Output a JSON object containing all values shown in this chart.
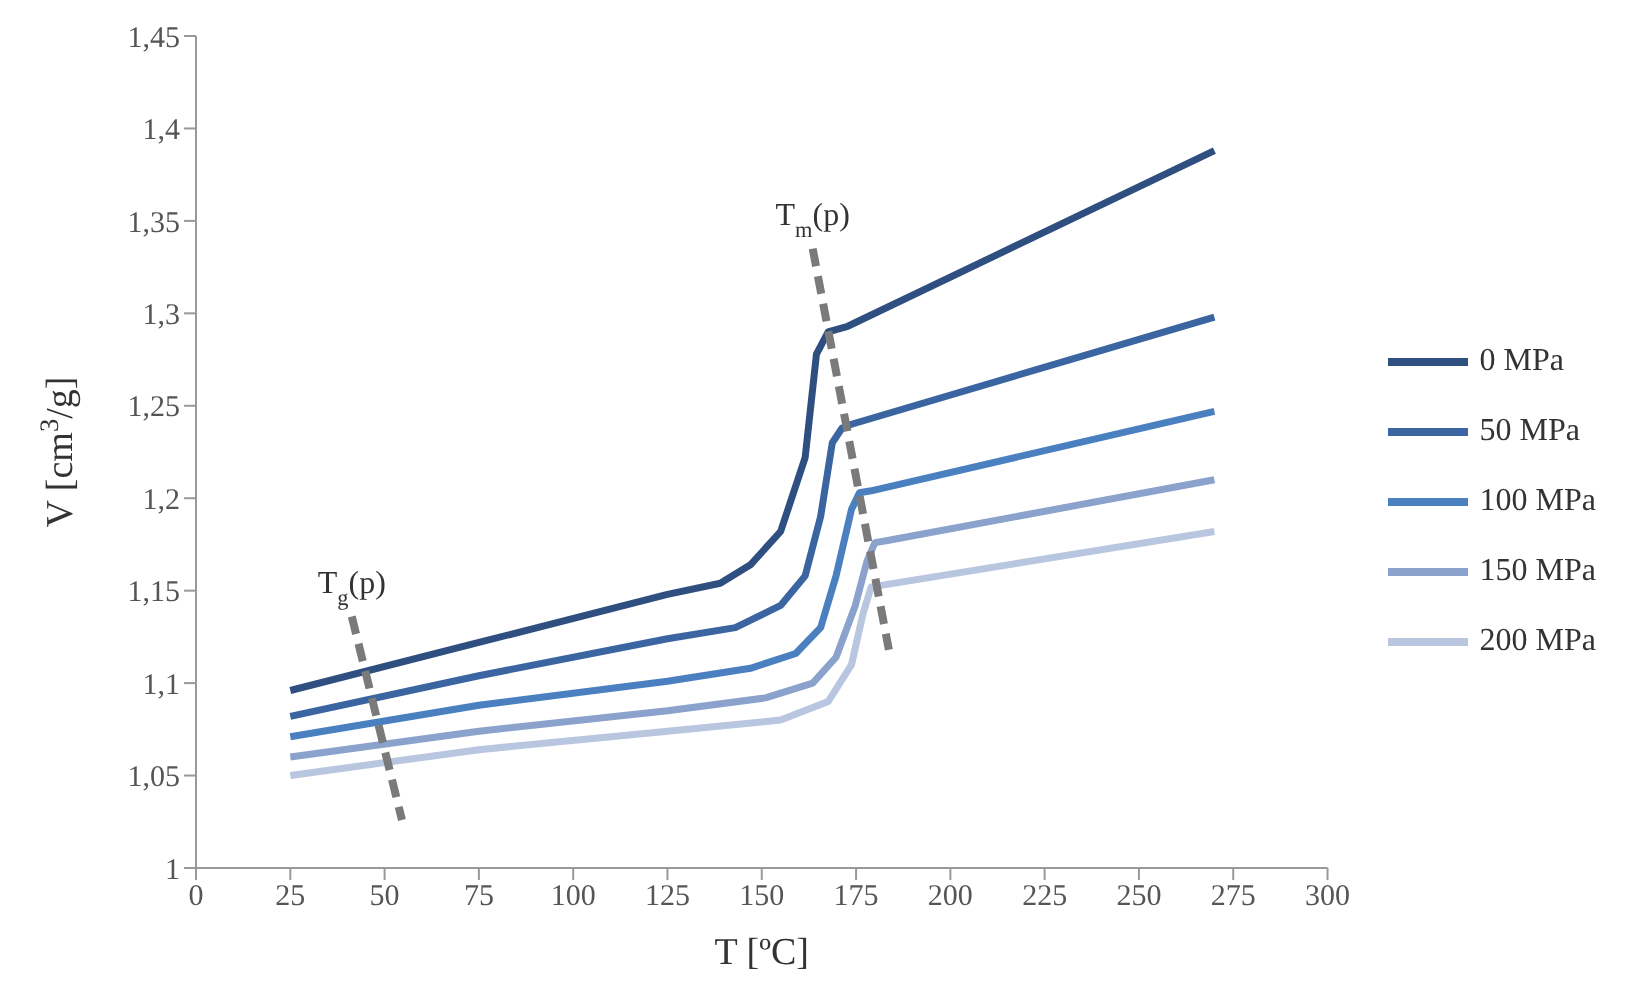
{
  "chart_data": {
    "type": "line",
    "xlabel": "T [ºC]",
    "ylabel": "V [cm$^{3}$/g]",
    "xlim": [
      0,
      300
    ],
    "xticks": [
      0,
      25,
      50,
      75,
      100,
      125,
      150,
      175,
      200,
      225,
      250,
      275,
      300
    ],
    "ylim": [
      1,
      1.45
    ],
    "yticks": [
      {
        "value": 1,
        "label": "1"
      },
      {
        "value": 1.05,
        "label": "1,05"
      },
      {
        "value": 1.1,
        "label": "1,1"
      },
      {
        "value": 1.15,
        "label": "1,15"
      },
      {
        "value": 1.2,
        "label": "1,2"
      },
      {
        "value": 1.25,
        "label": "1,25"
      },
      {
        "value": 1.3,
        "label": "1,3"
      },
      {
        "value": 1.35,
        "label": "1,35"
      },
      {
        "value": 1.4,
        "label": "1,4"
      },
      {
        "value": 1.45,
        "label": "1,45"
      }
    ],
    "grid": false,
    "legend": "right",
    "marker": "none",
    "line_style": "solid",
    "series": [
      {
        "name": "0 MPa",
        "color": "#2e4f80",
        "x": [
          25,
          75,
          125,
          139,
          147,
          155,
          161.5,
          164.5,
          167.6,
          172.8,
          270
        ],
        "values": [
          1.096,
          1.122,
          1.148,
          1.154,
          1.164,
          1.182,
          1.222,
          1.278,
          1.29,
          1.293,
          1.388
        ]
      },
      {
        "name": "50 MPa",
        "color": "#3a65a0",
        "x": [
          25,
          75,
          125,
          143,
          155,
          161.5,
          165.6,
          168.7,
          171.3,
          173.8,
          270
        ],
        "values": [
          1.082,
          1.104,
          1.124,
          1.13,
          1.142,
          1.158,
          1.19,
          1.23,
          1.238,
          1.24,
          1.298
        ]
      },
      {
        "name": "100 MPa",
        "color": "#4a80c0",
        "x": [
          25,
          75,
          125,
          147,
          159,
          165.6,
          169.7,
          173.8,
          175.9,
          179,
          270
        ],
        "values": [
          1.071,
          1.088,
          1.101,
          1.108,
          1.116,
          1.13,
          1.158,
          1.194,
          1.203,
          1.204,
          1.247
        ]
      },
      {
        "name": "150 MPa",
        "color": "#8aa2cc",
        "x": [
          25,
          75,
          125,
          151,
          163.5,
          169.7,
          174.8,
          177.9,
          180,
          183,
          270
        ],
        "values": [
          1.06,
          1.074,
          1.085,
          1.092,
          1.1,
          1.114,
          1.142,
          1.166,
          1.176,
          1.177,
          1.21
        ]
      },
      {
        "name": "200 MPa",
        "color": "#b8c6e0",
        "x": [
          25,
          75,
          125,
          155,
          167.6,
          173.8,
          176.9,
          179,
          182,
          270
        ],
        "values": [
          1.05,
          1.064,
          1.074,
          1.08,
          1.09,
          1.11,
          1.138,
          1.152,
          1.153,
          1.182
        ]
      },
      {
        "name": "T$_{g}$(p)",
        "color": "#7a7a7a",
        "line_style": "dashed",
        "x": [
          41.3,
          54.6
        ],
        "values": [
          1.136,
          1.026
        ]
      },
      {
        "name": "T$_{m}$(p)",
        "color": "#7a7a7a",
        "line_style": "dashed",
        "x": [
          163.5,
          183.7
        ],
        "values": [
          1.335,
          1.118
        ]
      }
    ]
  }
}
